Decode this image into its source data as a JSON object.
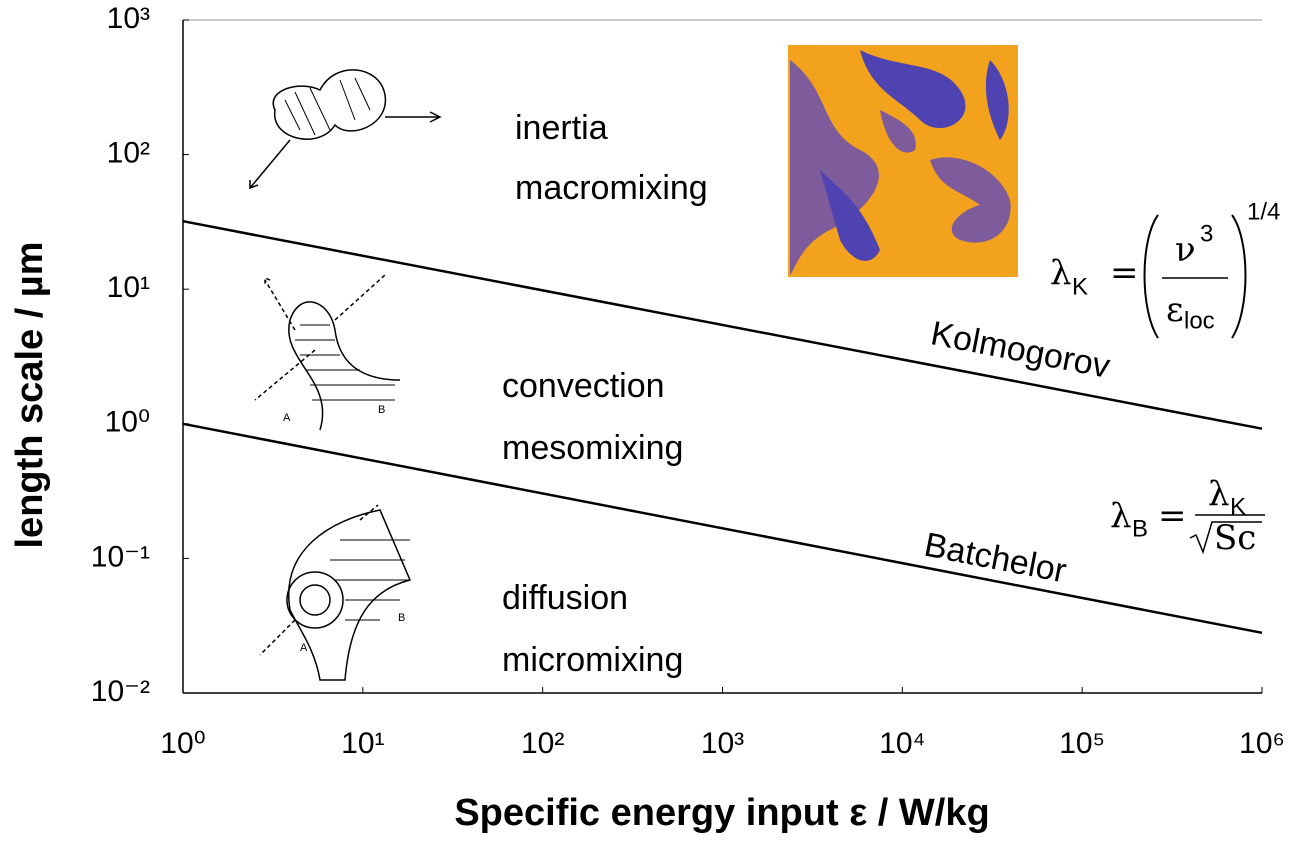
{
  "chart_data": {
    "type": "line",
    "x_label": "Specific energy input ε  /  W/kg",
    "y_label": "length scale  /  µm",
    "log_x": true,
    "log_y": true,
    "xlim": [
      1,
      1000000
    ],
    "xticks": [
      {
        "value": 1,
        "label": "10⁰"
      },
      {
        "value": 10,
        "label": "10¹"
      },
      {
        "value": 100,
        "label": "10²"
      },
      {
        "value": 1000,
        "label": "10³"
      },
      {
        "value": 10000,
        "label": "10⁴"
      },
      {
        "value": 100000,
        "label": "10⁵"
      },
      {
        "value": 1000000,
        "label": "10⁶"
      }
    ],
    "ylim": [
      0.01,
      1000
    ],
    "yticks": [
      {
        "value": 0.01,
        "label": "10⁻²"
      },
      {
        "value": 0.1,
        "label": "10⁻¹"
      },
      {
        "value": 1,
        "label": "10⁰"
      },
      {
        "value": 10,
        "label": "10¹"
      },
      {
        "value": 100,
        "label": "10²"
      },
      {
        "value": 1000,
        "label": "10³"
      }
    ],
    "series": [
      {
        "name": "Kolmogorov",
        "color": "#000000",
        "x": [
          1,
          1000000
        ],
        "values": [
          32,
          0.92
        ]
      },
      {
        "name": "Batchelor",
        "color": "#000000",
        "x": [
          1,
          1000000
        ],
        "values": [
          1,
          0.028
        ]
      }
    ],
    "annotations": [
      "inertia",
      "macromixing",
      "convection",
      "mesomixing",
      "diffusion",
      "micromixing"
    ],
    "sketch_labels": [
      "A",
      "B",
      "A",
      "B"
    ],
    "kolmogorov_equation": {
      "symbol": "λ",
      "subscript": "K",
      "equals": "=",
      "numerator": "ν",
      "numerator_power": "3",
      "denominator": "ε",
      "denominator_subscript": "loc",
      "exponent": "1/4"
    },
    "batchelor_equation": {
      "symbol": "λ",
      "subscript": "B",
      "equals": "=",
      "numerator": "λ",
      "numerator_subscript": "K",
      "denominator": "Sc"
    }
  }
}
